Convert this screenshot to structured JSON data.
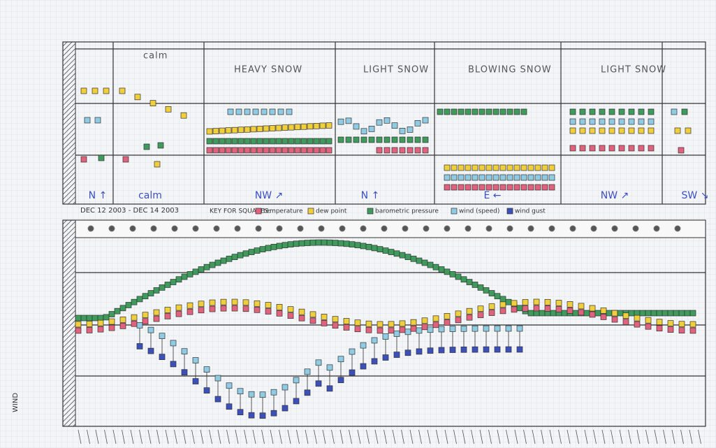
{
  "header": {
    "date_range": "DEC 12 2003 - DEC 14 2003",
    "key": "KEY FOR SQUARES:",
    "key_items": [
      "temperature",
      "dew point",
      "barometric pressure",
      "wind (speed)",
      "wind gust"
    ]
  },
  "top_panel": {
    "conditions": [
      "calm",
      "HEAVY SNOW",
      "LIGHT SNOW",
      "BLOWING SNOW",
      "LIGHT SNOW"
    ],
    "wind": [
      "N ↑",
      "calm",
      "NW ↗",
      "N ↑",
      "E ←",
      "NW ↗",
      "SW ↘"
    ]
  },
  "side_label": "WIND"
}
